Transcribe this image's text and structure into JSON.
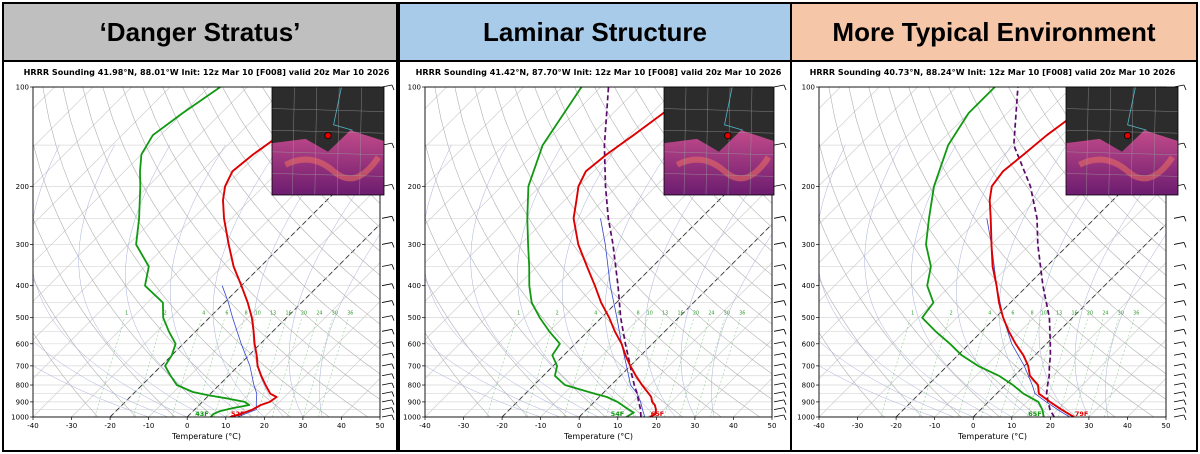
{
  "panels": [
    {
      "header": "‘Danger Stratus’",
      "header_color": "#bfbfbf",
      "inset_marker": [
        0.5,
        0.45
      ]
    },
    {
      "header": "Laminar Structure",
      "header_color": "#a9cbea",
      "inset_marker": [
        0.58,
        0.45
      ]
    },
    {
      "header": "More Typical Environment",
      "header_color": "#f5c6a8",
      "inset_marker": [
        0.55,
        0.45
      ]
    }
  ],
  "chart_data": [
    {
      "type": "skew-t sounding",
      "title": "HRRR Sounding 41.98°N, 88.01°W Init: 12z Mar 10 [F008] valid 20z Mar 10 2026",
      "xlabel": "Temperature (°C)",
      "xlim": [
        -40,
        50
      ],
      "xticks": [
        -40,
        -30,
        -20,
        -10,
        0,
        10,
        20,
        30,
        40,
        50
      ],
      "pressure_levels": [
        100,
        200,
        300,
        400,
        500,
        600,
        700,
        800,
        900,
        1000
      ],
      "mixing_ratio_labels": [
        "1",
        "2",
        "4",
        "6",
        "8",
        "10",
        "13",
        "16",
        "20",
        "24",
        "30",
        "36"
      ],
      "surface_dewpoint_label": "43F",
      "surface_temp_label": "52F",
      "colors": {
        "temperature": "#dd0000",
        "dewpoint": "#119911",
        "parcel": "#3344cc",
        "wetbulb": "#5a0a6b"
      },
      "temperature": {
        "p": [
          1000,
          980,
          950,
          920,
          900,
          870,
          850,
          800,
          750,
          700,
          650,
          600,
          550,
          500,
          450,
          400,
          350,
          300,
          250,
          220,
          200,
          180,
          160,
          140,
          120,
          100
        ],
        "t": [
          11.1,
          13,
          15,
          16,
          17.5,
          18,
          15.5,
          12,
          8.5,
          5,
          2,
          -1.5,
          -5,
          -9,
          -14,
          -20,
          -27,
          -34,
          -42,
          -47,
          -50,
          -52,
          -51,
          -49,
          -46,
          -43
        ]
      },
      "dewpoint": {
        "p": [
          1000,
          980,
          960,
          940,
          920,
          900,
          880,
          860,
          840,
          800,
          750,
          700,
          650,
          600,
          550,
          500,
          450,
          400,
          350,
          300,
          250,
          200,
          180,
          160,
          140,
          120,
          100
        ],
        "t": [
          6.1,
          6,
          7,
          9.5,
          13,
          11,
          6,
          0,
          -5,
          -11,
          -15,
          -19,
          -20,
          -22,
          -27,
          -32,
          -36,
          -45,
          -49,
          -58,
          -64,
          -72,
          -76,
          -80,
          -82,
          -80,
          -77
        ]
      },
      "parcel": {
        "p": [
          1000,
          950,
          900,
          850,
          800,
          700,
          600,
          500,
          450,
          400
        ],
        "t": [
          13,
          16,
          14,
          12,
          9,
          3,
          -5,
          -14,
          -19,
          -25
        ]
      },
      "wetbulb": null
    },
    {
      "type": "skew-t sounding",
      "title": "HRRR Sounding 41.42°N, 87.70°W Init: 12z Mar 10 [F008] valid 20z Mar 10 2026",
      "xlabel": "Temperature (°C)",
      "xlim": [
        -40,
        50
      ],
      "xticks": [
        -40,
        -30,
        -20,
        -10,
        0,
        10,
        20,
        30,
        40,
        50
      ],
      "pressure_levels": [
        100,
        200,
        300,
        400,
        500,
        600,
        700,
        800,
        900,
        1000
      ],
      "mixing_ratio_labels": [
        "1",
        "2",
        "4",
        "6",
        "8",
        "10",
        "13",
        "16",
        "20",
        "24",
        "30",
        "36"
      ],
      "surface_dewpoint_label": "54F",
      "surface_temp_label": "65F",
      "colors": {
        "temperature": "#dd0000",
        "dewpoint": "#119911",
        "parcel": "#3344cc",
        "wetbulb": "#5a0a6b"
      },
      "temperature": {
        "p": [
          1000,
          980,
          950,
          920,
          900,
          870,
          850,
          800,
          750,
          700,
          650,
          600,
          550,
          500,
          450,
          400,
          350,
          300,
          250,
          220,
          200,
          180,
          160,
          140,
          120,
          100
        ],
        "t": [
          18.3,
          19,
          18,
          16.5,
          15,
          13.5,
          12,
          8,
          4,
          0,
          -4,
          -8,
          -13,
          -18,
          -24,
          -30,
          -37,
          -45,
          -53,
          -57,
          -60,
          -62,
          -61,
          -59,
          -57,
          -55
        ]
      },
      "dewpoint": {
        "p": [
          1000,
          970,
          940,
          900,
          870,
          850,
          800,
          750,
          700,
          650,
          600,
          550,
          500,
          450,
          400,
          350,
          300,
          250,
          200,
          150,
          100
        ],
        "t": [
          12.2,
          13,
          10,
          6,
          2,
          -2,
          -12,
          -17,
          -19,
          -23,
          -24,
          -30,
          -36,
          -42,
          -47,
          -52,
          -58,
          -65,
          -73,
          -80,
          -85
        ]
      },
      "parcel": {
        "p": [
          1000,
          950,
          900,
          850,
          800,
          700,
          600,
          500,
          400,
          300,
          250
        ],
        "t": [
          17,
          14.5,
          12,
          9,
          5,
          -1,
          -8,
          -16,
          -26,
          -38,
          -46
        ]
      },
      "wetbulb": {
        "p": [
          1000,
          950,
          900,
          850,
          800,
          750,
          700,
          600,
          500,
          400,
          300,
          250,
          200,
          150,
          100
        ],
        "t": [
          16,
          14,
          11.5,
          9,
          6,
          3,
          0,
          -7,
          -15,
          -24,
          -36,
          -44,
          -53,
          -64,
          -78
        ]
      }
    },
    {
      "type": "skew-t sounding",
      "title": "HRRR Sounding 40.73°N, 88.24°W Init: 12z Mar 10 [F008] valid 20z Mar 10 2026",
      "xlabel": "Temperature (°C)",
      "xlim": [
        -40,
        50
      ],
      "xticks": [
        -40,
        -30,
        -20,
        -10,
        0,
        10,
        20,
        30,
        40,
        50
      ],
      "pressure_levels": [
        100,
        200,
        300,
        400,
        500,
        600,
        700,
        800,
        900,
        1000
      ],
      "mixing_ratio_labels": [
        "1",
        "2",
        "4",
        "6",
        "8",
        "10",
        "13",
        "16",
        "20",
        "24",
        "30",
        "36"
      ],
      "surface_dewpoint_label": "65F",
      "surface_temp_label": "79F",
      "colors": {
        "temperature": "#dd0000",
        "dewpoint": "#119911",
        "parcel": "#3344cc",
        "wetbulb": "#5a0a6b"
      },
      "temperature": {
        "p": [
          1000,
          950,
          900,
          850,
          800,
          750,
          700,
          650,
          600,
          550,
          500,
          450,
          400,
          350,
          300,
          250,
          220,
          200,
          180,
          160,
          140,
          120,
          100
        ],
        "t": [
          26.1,
          21,
          16,
          11,
          8.5,
          4,
          1,
          -3,
          -8,
          -13,
          -18,
          -23,
          -28,
          -34,
          -40,
          -47,
          -52,
          -55,
          -56,
          -55,
          -54,
          -52,
          -50
        ]
      },
      "dewpoint": {
        "p": [
          1000,
          950,
          900,
          850,
          800,
          750,
          700,
          650,
          600,
          550,
          500,
          450,
          400,
          350,
          300,
          250,
          200,
          150,
          120,
          100
        ],
        "t": [
          18.3,
          16,
          13,
          7,
          2,
          -4,
          -12,
          -19,
          -25,
          -32,
          -39,
          -40,
          -46,
          -50,
          -57,
          -63,
          -70,
          -77,
          -80,
          -80
        ]
      },
      "parcel": {
        "p": [
          1000,
          950,
          900,
          850,
          800,
          700,
          600,
          500,
          400,
          300,
          250
        ],
        "t": [
          25,
          20,
          15,
          10,
          7,
          0,
          -9,
          -18,
          -28,
          -40,
          -48
        ]
      },
      "wetbulb": {
        "p": [
          1000,
          950,
          900,
          850,
          800,
          750,
          700,
          650,
          600,
          500,
          400,
          300,
          250,
          200,
          150,
          100
        ],
        "t": [
          21,
          18,
          15.5,
          13,
          11,
          9,
          6.5,
          4,
          1,
          -6,
          -16,
          -28,
          -35,
          -45,
          -60,
          -74
        ]
      }
    }
  ]
}
